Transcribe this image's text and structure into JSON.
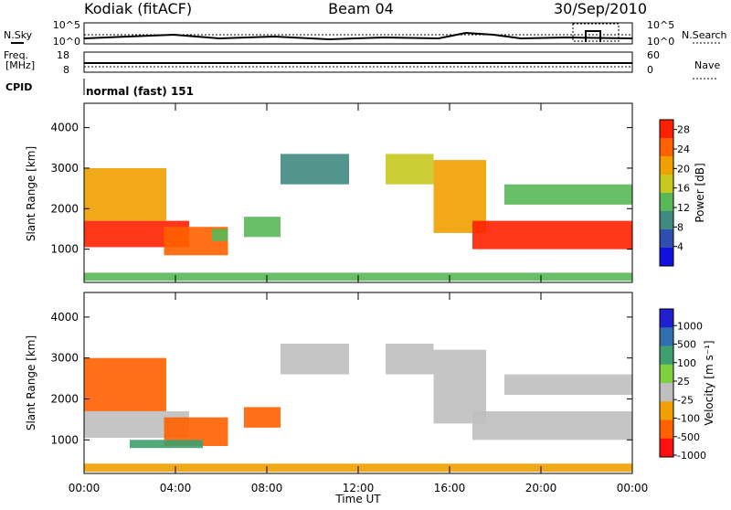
{
  "header": {
    "station": "Kodiak (fitACF)",
    "beam": "Beam 04",
    "date": "30/Sep/2010"
  },
  "status_panel": {
    "nsky_label": "N.Sky",
    "nsearch_label": "N.Search",
    "noise_ticks": [
      "10^5",
      "10^0"
    ],
    "freq_label": "Freq.",
    "freq_unit": "[MHz]",
    "freq_ticks": [
      "18",
      "8"
    ],
    "nave_label": "Nave",
    "nave_ticks": [
      "60",
      "0"
    ],
    "cpid_label": "CPID",
    "cpid_value": "normal (fast) 151"
  },
  "chart_data": [
    {
      "type": "heatmap",
      "panel": "power",
      "ylabel": "Slant Range [km]",
      "xlabel": "Time UT",
      "x_ticks": [
        "00:00",
        "04:00",
        "08:00",
        "12:00",
        "16:00",
        "20:00",
        "00:00"
      ],
      "x_range_hours": [
        0,
        24
      ],
      "y_ticks": [
        1000,
        2000,
        3000,
        4000
      ],
      "y_range_km": [
        180,
        4600
      ],
      "colorbar": {
        "label": "Power [dB]",
        "ticks": [
          4,
          8,
          12,
          16,
          20,
          24,
          28
        ],
        "range": [
          0,
          30
        ],
        "colors": [
          "#1010e0",
          "#2f4fb0",
          "#3f8a7f",
          "#58b858",
          "#c8c820",
          "#f0a000",
          "#ff6000",
          "#ff2000"
        ]
      },
      "regions": [
        {
          "t": [
            0.0,
            4.6
          ],
          "r": [
            1050,
            1700
          ],
          "v": 28
        },
        {
          "t": [
            0.0,
            3.6
          ],
          "r": [
            1700,
            3000
          ],
          "v": 22
        },
        {
          "t": [
            3.5,
            6.3
          ],
          "r": [
            850,
            1550
          ],
          "v": 26
        },
        {
          "t": [
            5.6,
            6.3
          ],
          "r": [
            1200,
            1500
          ],
          "v": 14
        },
        {
          "t": [
            7.0,
            8.6
          ],
          "r": [
            1300,
            1800
          ],
          "v": 12
        },
        {
          "t": [
            8.6,
            11.6
          ],
          "r": [
            2600,
            3350
          ],
          "v": 10
        },
        {
          "t": [
            13.2,
            15.3
          ],
          "r": [
            2600,
            3350
          ],
          "v": 18
        },
        {
          "t": [
            15.3,
            17.6
          ],
          "r": [
            1400,
            3200
          ],
          "v": 22
        },
        {
          "t": [
            17.0,
            24.0
          ],
          "r": [
            1000,
            1700
          ],
          "v": 28
        },
        {
          "t": [
            18.4,
            24.0
          ],
          "r": [
            2100,
            2600
          ],
          "v": 12
        },
        {
          "t": [
            0.0,
            24.0
          ],
          "r": [
            220,
            420
          ],
          "v": 14
        }
      ]
    },
    {
      "type": "heatmap",
      "panel": "velocity",
      "ylabel": "Slant Range [km]",
      "xlabel": "Time UT",
      "x_ticks": [
        "00:00",
        "04:00",
        "08:00",
        "12:00",
        "16:00",
        "20:00",
        "00:00"
      ],
      "x_range_hours": [
        0,
        24
      ],
      "y_ticks": [
        1000,
        2000,
        3000,
        4000
      ],
      "y_range_km": [
        180,
        4600
      ],
      "colorbar": {
        "label": "Velocity [m s⁻¹]",
        "ticks": [
          1000,
          500,
          100,
          25,
          -25,
          -100,
          -500,
          -1000
        ],
        "colors": [
          "#2020d0",
          "#2f6faf",
          "#3fa06f",
          "#7fd040",
          "#bfbfbf",
          "#f0a000",
          "#ff6000",
          "#ff1010"
        ]
      },
      "regions": [
        {
          "t": [
            0.0,
            4.6
          ],
          "r": [
            1050,
            1700
          ],
          "v": 0
        },
        {
          "t": [
            0.0,
            3.6
          ],
          "r": [
            1700,
            3000
          ],
          "v": -150
        },
        {
          "t": [
            3.5,
            6.3
          ],
          "r": [
            850,
            1550
          ],
          "v": -300
        },
        {
          "t": [
            2.0,
            5.2
          ],
          "r": [
            800,
            1000
          ],
          "v": 120
        },
        {
          "t": [
            7.0,
            8.6
          ],
          "r": [
            1300,
            1800
          ],
          "v": -200
        },
        {
          "t": [
            8.6,
            11.6
          ],
          "r": [
            2600,
            3350
          ],
          "v": 0
        },
        {
          "t": [
            13.2,
            15.3
          ],
          "r": [
            2600,
            3350
          ],
          "v": 0
        },
        {
          "t": [
            15.3,
            17.6
          ],
          "r": [
            1400,
            3200
          ],
          "v": 0
        },
        {
          "t": [
            17.0,
            24.0
          ],
          "r": [
            1000,
            1700
          ],
          "v": 0
        },
        {
          "t": [
            18.4,
            24.0
          ],
          "r": [
            2100,
            2600
          ],
          "v": 0
        },
        {
          "t": [
            0.0,
            24.0
          ],
          "r": [
            220,
            420
          ],
          "v": -100
        }
      ]
    }
  ]
}
